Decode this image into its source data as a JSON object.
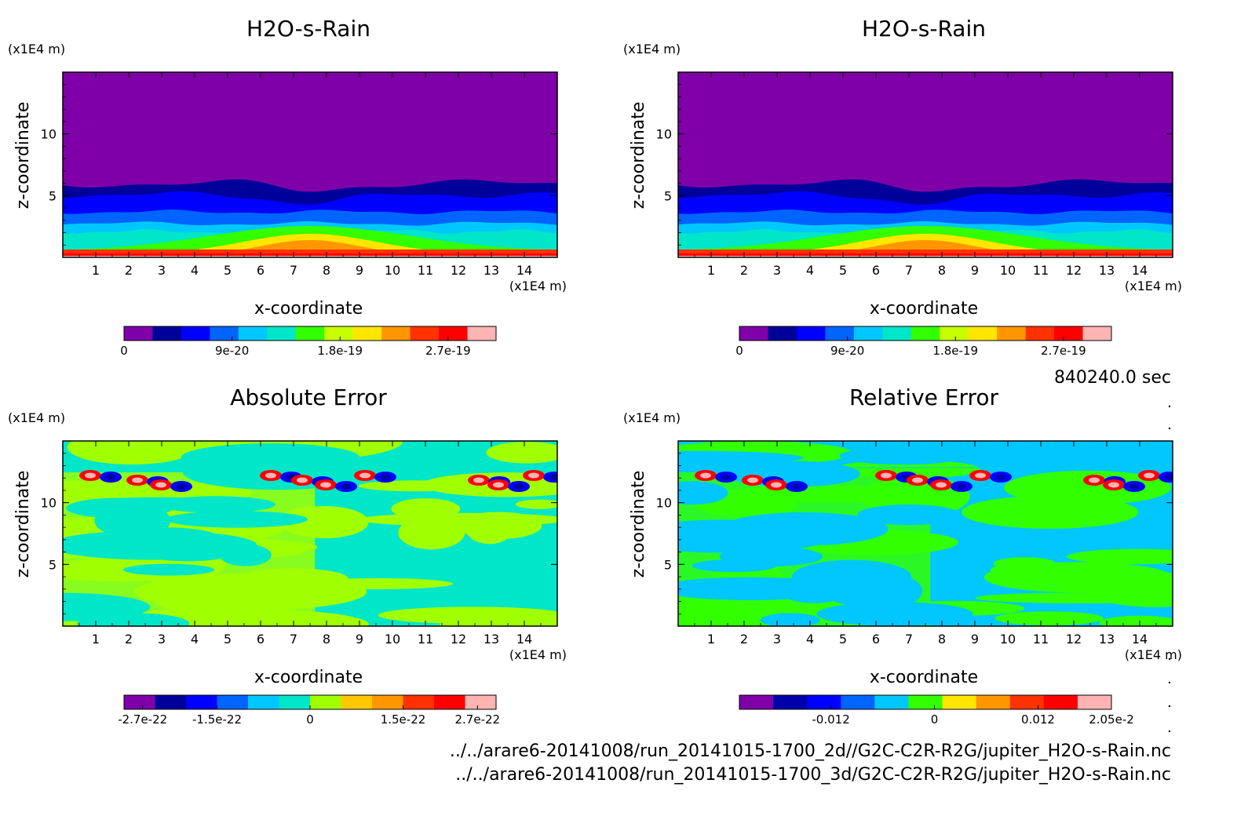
{
  "time_label": "840240.0 sec",
  "files": [
    "../../arare6-20141008/run_20141015-1700_2d//G2C-C2R-R2G/jupiter_H2O-s-Rain.nc",
    "../../arare6-20141008/run_20141015-1700_3d/G2C-C2R-R2G/jupiter_H2O-s-Rain.nc"
  ],
  "chart_data": [
    {
      "type": "heatmap",
      "title": "H2O-s-Rain",
      "xlabel": "x-coordinate",
      "ylabel": "z-coordinate",
      "x_unit": "(x1E4 m)",
      "y_unit": "(x1E4 m)",
      "xlim": [
        0,
        15
      ],
      "ylim": [
        0,
        15
      ],
      "x_ticks": [
        "1",
        "2",
        "3",
        "4",
        "5",
        "6",
        "7",
        "8",
        "9",
        "10",
        "11",
        "12",
        "13",
        "14"
      ],
      "y_ticks": [
        "5",
        "10"
      ],
      "colorbar": {
        "colors": [
          "#7f00a8",
          "#00009a",
          "#0000ff",
          "#0064ff",
          "#00c8ff",
          "#00e6c8",
          "#32ff00",
          "#c8ff00",
          "#ffe600",
          "#ff9600",
          "#ff3200",
          "#ff0000",
          "#ffb4b4"
        ],
        "levels": 11,
        "labels": [
          "0",
          "9e-20",
          "1.8e-19",
          "2.7e-19"
        ],
        "label_values": [
          0,
          9e-20,
          1.8e-19,
          2.7e-19
        ],
        "range": [
          0,
          3.1e-19
        ]
      },
      "pattern": "layered"
    },
    {
      "type": "heatmap",
      "title": "H2O-s-Rain",
      "xlabel": "x-coordinate",
      "ylabel": "z-coordinate",
      "x_unit": "(x1E4 m)",
      "y_unit": "(x1E4 m)",
      "xlim": [
        0,
        15
      ],
      "ylim": [
        0,
        15
      ],
      "x_ticks": [
        "1",
        "2",
        "3",
        "4",
        "5",
        "6",
        "7",
        "8",
        "9",
        "10",
        "11",
        "12",
        "13",
        "14"
      ],
      "y_ticks": [
        "5",
        "10"
      ],
      "colorbar": {
        "colors": [
          "#7f00a8",
          "#00009a",
          "#0000ff",
          "#0064ff",
          "#00c8ff",
          "#00e6c8",
          "#32ff00",
          "#c8ff00",
          "#ffe600",
          "#ff9600",
          "#ff3200",
          "#ff0000",
          "#ffb4b4"
        ],
        "levels": 11,
        "labels": [
          "0",
          "9e-20",
          "1.8e-19",
          "2.7e-19"
        ],
        "label_values": [
          0,
          9e-20,
          1.8e-19,
          2.7e-19
        ],
        "range": [
          0,
          3.1e-19
        ]
      },
      "pattern": "layered"
    },
    {
      "type": "heatmap",
      "title": "Absolute Error",
      "xlabel": "x-coordinate",
      "ylabel": "z-coordinate",
      "x_unit": "(x1E4 m)",
      "y_unit": "(x1E4 m)",
      "xlim": [
        0,
        15
      ],
      "ylim": [
        0,
        15
      ],
      "x_ticks": [
        "1",
        "2",
        "3",
        "4",
        "5",
        "6",
        "7",
        "8",
        "9",
        "10",
        "11",
        "12",
        "13",
        "14"
      ],
      "y_ticks": [
        "5",
        "10"
      ],
      "colorbar": {
        "colors": [
          "#7f00a8",
          "#00009a",
          "#0000ff",
          "#0064ff",
          "#00c8ff",
          "#00e6c8",
          "#a0ff00",
          "#ffc800",
          "#ff9600",
          "#ff3200",
          "#ff0000",
          "#ffb4b4"
        ],
        "labels": [
          "-2.7e-22",
          "-1.5e-22",
          "0",
          "1.5e-22",
          "2.7e-22"
        ],
        "label_values": [
          -2.7e-22,
          -1.5e-22,
          0,
          1.5e-22,
          2.7e-22
        ],
        "range": [
          -3e-22,
          3e-22
        ]
      },
      "background": [
        "#00e6c8",
        "#a0ff00"
      ],
      "pattern": "error"
    },
    {
      "type": "heatmap",
      "title": "Relative Error",
      "xlabel": "x-coordinate",
      "ylabel": "z-coordinate",
      "x_unit": "(x1E4 m)",
      "y_unit": "(x1E4 m)",
      "xlim": [
        0,
        15
      ],
      "ylim": [
        0,
        15
      ],
      "x_ticks": [
        "1",
        "2",
        "3",
        "4",
        "5",
        "6",
        "7",
        "8",
        "9",
        "10",
        "11",
        "12",
        "13",
        "14"
      ],
      "y_ticks": [
        "5",
        "10"
      ],
      "colorbar": {
        "colors": [
          "#7f00a8",
          "#0000aa",
          "#0000ff",
          "#0064ff",
          "#00c8ff",
          "#32ff00",
          "#ffe600",
          "#ff9600",
          "#ff3200",
          "#ff0000",
          "#ffb4b4"
        ],
        "labels": [
          "-0.012",
          "0",
          "0.012",
          "2.05e-2"
        ],
        "label_values": [
          -0.012,
          0,
          0.012,
          0.0205
        ],
        "range": [
          -0.0226,
          0.0205
        ]
      },
      "background": [
        "#00c8ff",
        "#32ff00"
      ],
      "pattern": "error"
    }
  ]
}
